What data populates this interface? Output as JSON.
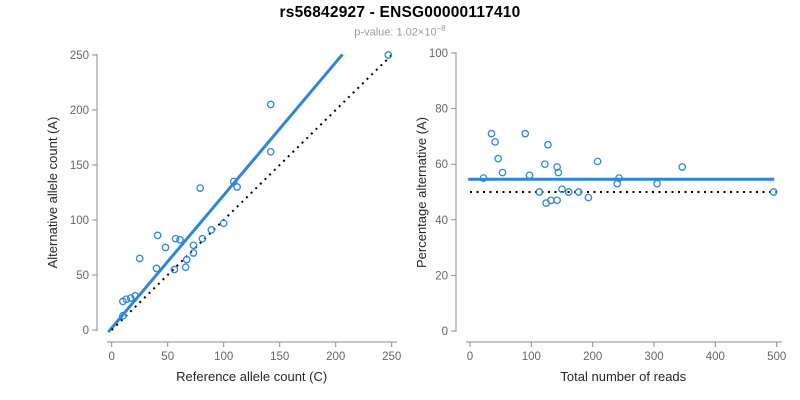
{
  "header": {
    "title": "rs56842927 - ENSG00000117410",
    "p_label": "p-value:",
    "p_base": "1.02×10",
    "p_exponent": "−8"
  },
  "colors": {
    "point_blue": "#2E86D8",
    "line_blue": "#2E86D8",
    "identity_black": "#000000",
    "axis_gray": "#8C8C8C",
    "tick_text_gray": "#666666",
    "axis_label_dark": "#262626",
    "title_black": "#000000",
    "subtitle_gray": "#9B9B9B"
  },
  "chart_data": [
    {
      "type": "scatter",
      "panel": "left",
      "xlabel": "Reference allele count (C)",
      "ylabel": "Alternative allele count (A)",
      "xlim": [
        0,
        250
      ],
      "ylim": [
        0,
        250
      ],
      "xticks": [
        0,
        50,
        100,
        150,
        200,
        250
      ],
      "yticks": [
        0,
        50,
        100,
        150,
        200,
        250
      ],
      "grid": false,
      "points": [
        [
          10,
          13
        ],
        [
          10,
          26
        ],
        [
          13,
          28
        ],
        [
          17,
          29
        ],
        [
          21,
          31
        ],
        [
          25,
          65
        ],
        [
          40,
          56
        ],
        [
          41,
          86
        ],
        [
          48,
          75
        ],
        [
          56,
          55
        ],
        [
          57,
          83
        ],
        [
          61,
          82
        ],
        [
          66,
          57
        ],
        [
          67,
          64
        ],
        [
          73,
          70
        ],
        [
          73,
          77
        ],
        [
          79,
          129
        ],
        [
          81,
          83
        ],
        [
          89,
          91
        ],
        [
          100,
          97
        ],
        [
          109,
          135
        ],
        [
          112,
          130
        ],
        [
          142,
          162
        ],
        [
          142,
          205
        ],
        [
          247,
          250
        ]
      ],
      "lines": [
        {
          "name": "regression-line",
          "style": "solid",
          "color_key": "line_blue",
          "points": [
            [
              -3.0,
              -1.8
            ],
            [
              206.0,
              250.5
            ]
          ]
        },
        {
          "name": "identity-line",
          "style": "dotted",
          "color_key": "identity_black",
          "points": [
            [
              0,
              0
            ],
            [
              250,
              250
            ]
          ]
        }
      ]
    },
    {
      "type": "scatter",
      "panel": "right",
      "xlabel": "Total number of reads",
      "ylabel": "Percentage alternative (A)",
      "xlim": [
        0,
        500
      ],
      "ylim": [
        0,
        100
      ],
      "xticks": [
        0,
        100,
        200,
        300,
        400,
        500
      ],
      "yticks": [
        0,
        20,
        40,
        60,
        80,
        100
      ],
      "grid": false,
      "points": [
        [
          22,
          55
        ],
        [
          35,
          71
        ],
        [
          41,
          68
        ],
        [
          46,
          62
        ],
        [
          53,
          57
        ],
        [
          90,
          71
        ],
        [
          97,
          56
        ],
        [
          113,
          50
        ],
        [
          122,
          60
        ],
        [
          124,
          46
        ],
        [
          127,
          67
        ],
        [
          132,
          47
        ],
        [
          142,
          47
        ],
        [
          142,
          59
        ],
        [
          144,
          57
        ],
        [
          150,
          51
        ],
        [
          161,
          50
        ],
        [
          177,
          50
        ],
        [
          193,
          48
        ],
        [
          208,
          61
        ],
        [
          240,
          53
        ],
        [
          243,
          55
        ],
        [
          305,
          53
        ],
        [
          346,
          59
        ],
        [
          495,
          50
        ]
      ],
      "lines": [
        {
          "name": "mean-percentage-line",
          "style": "solid",
          "color_key": "line_blue",
          "points": [
            [
              -3,
              54.6
            ],
            [
              496,
              54.6
            ]
          ]
        },
        {
          "name": "fifty-percent-line",
          "style": "dotted",
          "color_key": "identity_black",
          "points": [
            [
              0,
              50
            ],
            [
              500,
              50
            ]
          ]
        }
      ]
    }
  ]
}
